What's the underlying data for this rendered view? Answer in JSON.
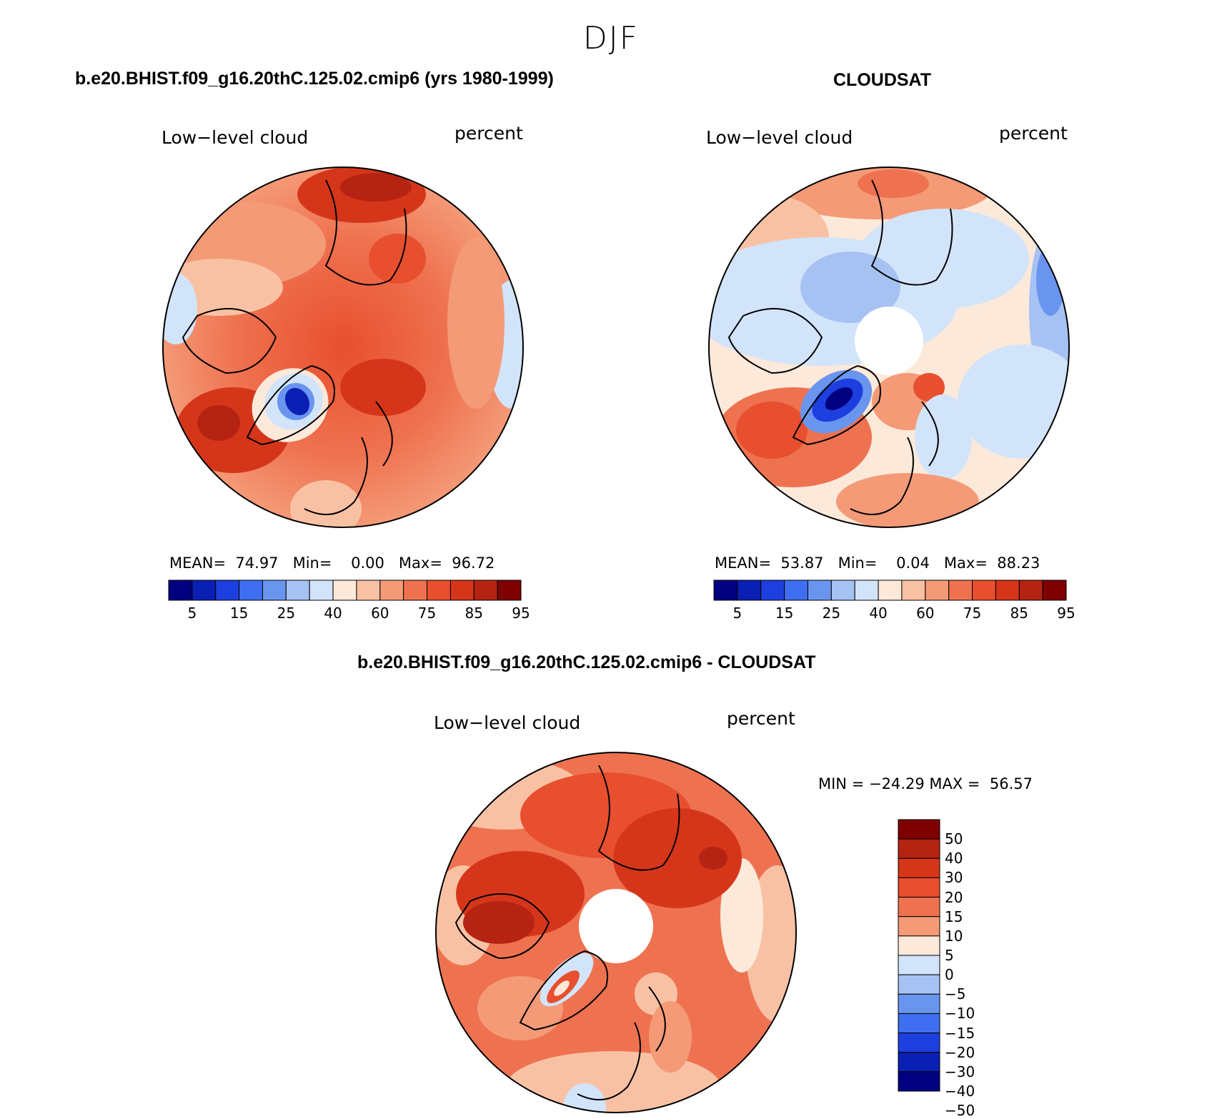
{
  "figure_title": "DJF",
  "colors": {
    "seq": [
      "#000080",
      "#0a1fb4",
      "#1e3fe0",
      "#3f6ff0",
      "#6a95ef",
      "#a6c2f3",
      "#d2e4fa",
      "#fde9d9",
      "#f9c1a4",
      "#f49a77",
      "#ef7250",
      "#e84f2e",
      "#d5361a",
      "#b52312",
      "#7f0000"
    ],
    "diff": [
      "#7f0000",
      "#b52312",
      "#d5361a",
      "#e84f2e",
      "#ef7250",
      "#f49a77",
      "#fde9d9",
      "#d2e4fa",
      "#a6c2f3",
      "#6a95ef",
      "#3f6ff0",
      "#1e3fe0",
      "#0a1fb4",
      "#000080"
    ]
  },
  "chart_data": [
    {
      "type": "heatmap",
      "title": "b.e20.BHIST.f09_g16.20thC.125.02.cmip6 (yrs 1980-1999)",
      "variable": "Low−level cloud",
      "units": "percent",
      "mean": "74.97",
      "min": "0.00",
      "max": "96.72",
      "colorbar_ticks": [
        "5",
        "15",
        "25",
        "40",
        "60",
        "75",
        "85",
        "95"
      ]
    },
    {
      "type": "heatmap",
      "title": "CLOUDSAT",
      "variable": "Low−level cloud",
      "units": "percent",
      "mean": "53.87",
      "min": "0.04",
      "max": "88.23",
      "colorbar_ticks": [
        "5",
        "15",
        "25",
        "40",
        "60",
        "75",
        "85",
        "95"
      ]
    },
    {
      "type": "heatmap",
      "title": "b.e20.BHIST.f09_g16.20thC.125.02.cmip6 - CLOUDSAT",
      "variable": "Low−level cloud",
      "units": "percent",
      "min": "−24.29",
      "max": "56.57",
      "colorbar_ticks": [
        "50",
        "40",
        "30",
        "20",
        "15",
        "10",
        "5",
        "0",
        "−5",
        "−10",
        "−15",
        "−20",
        "−30",
        "−40",
        "−50"
      ]
    }
  ]
}
